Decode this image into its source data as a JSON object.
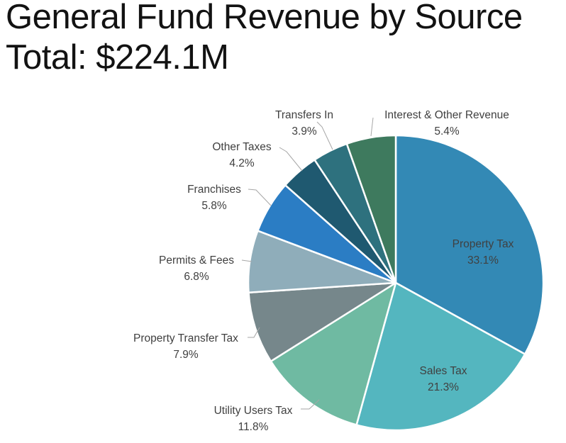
{
  "title": {
    "line1": "General Fund Revenue by Source",
    "line2": "Total: $224.1M"
  },
  "chart_data": {
    "type": "pie",
    "title": "General Fund Revenue by Source",
    "subtitle": "Total: $224.1M",
    "total_value": "$224.1M",
    "unit": "percent",
    "start_angle_deg": 0,
    "direction": "clockwise",
    "legend": "none",
    "label_color": "#404040",
    "leader_line_color": "#a6a6a6",
    "slice_border_color": "#ffffff",
    "slices": [
      {
        "label": "Property Tax",
        "value": 33.1,
        "color": "#3389b5",
        "label_placement": "inside"
      },
      {
        "label": "Sales Tax",
        "value": 21.3,
        "color": "#54b6bf",
        "label_placement": "inside"
      },
      {
        "label": "Utility Users Tax",
        "value": 11.8,
        "color": "#6fbaa2",
        "label_placement": "outside"
      },
      {
        "label": "Property Transfer Tax",
        "value": 7.9,
        "color": "#76878b",
        "label_placement": "outside"
      },
      {
        "label": "Permits & Fees",
        "value": 6.8,
        "color": "#8fadba",
        "label_placement": "outside"
      },
      {
        "label": "Franchises",
        "value": 5.8,
        "color": "#2b7dc4",
        "label_placement": "outside"
      },
      {
        "label": "Other Taxes",
        "value": 4.2,
        "color": "#1f5970",
        "label_placement": "outside"
      },
      {
        "label": "Transfers In",
        "value": 3.9,
        "color": "#2e717e",
        "label_placement": "outside"
      },
      {
        "label": "Interest & Other Revenue",
        "value": 5.4,
        "color": "#3e7a5e",
        "label_placement": "outside"
      }
    ]
  }
}
